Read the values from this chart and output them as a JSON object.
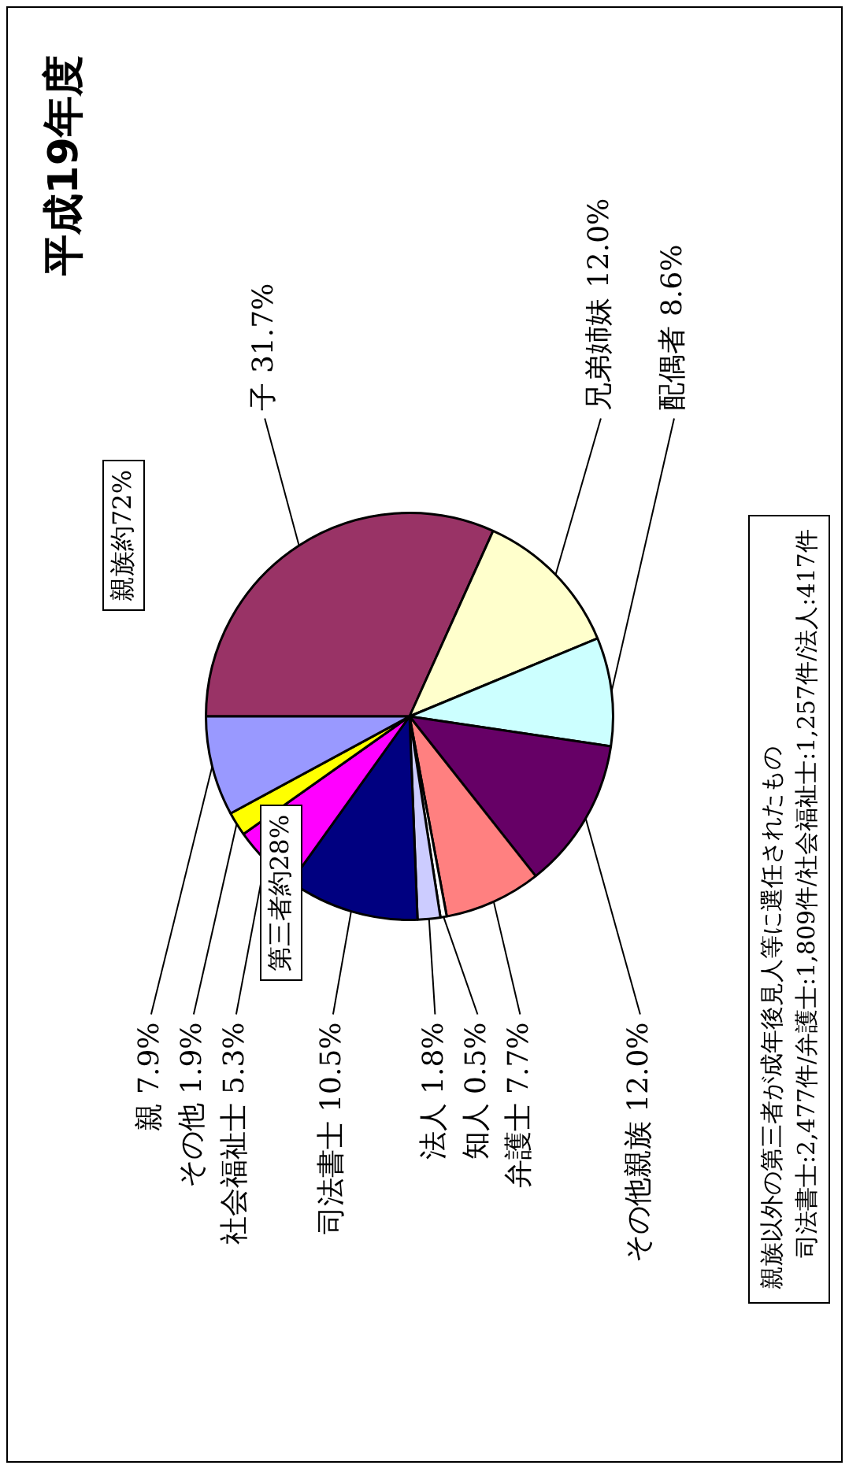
{
  "chart_data": {
    "type": "pie",
    "title": "平成19年度",
    "categories": [
      "子",
      "兄弟姉妹",
      "配偶者",
      "その他親族",
      "弁護士",
      "知人",
      "法人",
      "司法書士",
      "社会福祉士",
      "その他",
      "親"
    ],
    "values": [
      31.7,
      12.0,
      8.6,
      12.0,
      7.7,
      0.5,
      1.8,
      10.5,
      5.3,
      1.9,
      7.9
    ],
    "value_labels": [
      "31.7%",
      "12.0%",
      "8.6%",
      "12.0%",
      "7.7%",
      "0.5%",
      "1.8%",
      "10.5%",
      "5.3%",
      "1.9%",
      "7.9%"
    ],
    "colors": [
      "#993366",
      "#ffffcc",
      "#ccffff",
      "#660066",
      "#ff8080",
      "#ffffff",
      "#ccccff",
      "#000080",
      "#ff00ff",
      "#ffff00",
      "#9999ff"
    ],
    "annotations": [
      "親族約72%",
      "第三者約28%",
      "親族以外の第三者が成年後見人等に選任されたもの",
      "司法書士:2,477件/弁護士:1,809件/社会福祉士:1,257件/法人:417件"
    ],
    "legend": false
  }
}
